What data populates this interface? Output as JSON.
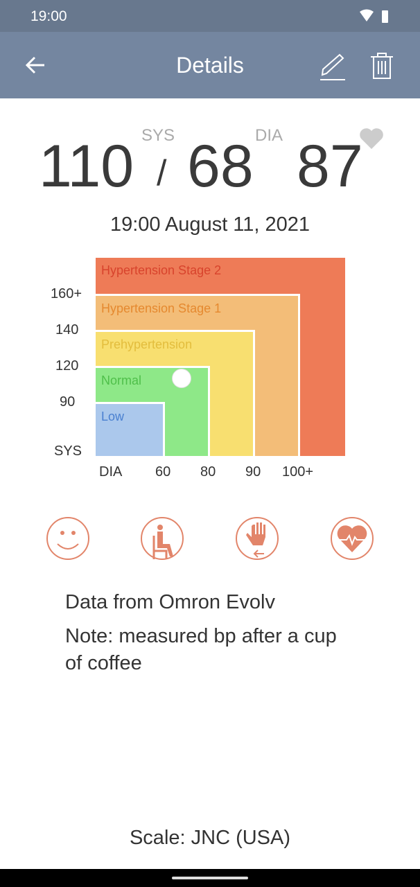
{
  "status_bar": {
    "time": "19:00",
    "icons": [
      "wifi-icon",
      "battery-icon"
    ]
  },
  "app_bar": {
    "title": "Details",
    "icons": [
      "back-arrow-icon",
      "edit-pencil-icon",
      "trash-icon"
    ]
  },
  "reading": {
    "sys": "110",
    "separator": "/",
    "dia": "68",
    "pulse": "87",
    "sys_label": "SYS",
    "dia_label": "DIA",
    "favorite_icon": "heart-icon",
    "datetime": "19:00 August 11, 2021"
  },
  "chart": {
    "zones": [
      {
        "label": "Hypertension Stage 2",
        "color": "#ee7b57",
        "text_color": "#d8432c"
      },
      {
        "label": "Hypertension Stage 1",
        "color": "#f3bd78",
        "text_color": "#e5892f"
      },
      {
        "label": "Prehypertension",
        "color": "#f8df70",
        "text_color": "#e3bd3d"
      },
      {
        "label": "Normal",
        "color": "#8ee888",
        "text_color": "#4fbf4a"
      },
      {
        "label": "Low",
        "color": "#abc8ec",
        "text_color": "#4a80d0"
      }
    ],
    "y_ticks": [
      "160+",
      "140",
      "120",
      "90"
    ],
    "y_label": "SYS",
    "x_label": "DIA",
    "x_ticks": [
      "60",
      "80",
      "90",
      "100+"
    ],
    "marker": {
      "sys": 110,
      "dia": 68
    }
  },
  "tags": [
    "smiley-icon",
    "seated-icon",
    "hand-arm-icon",
    "heart-rate-icon"
  ],
  "tag_color": "#e2856a",
  "source": "Data from Omron Evolv",
  "note": "Note: measured bp after a cup of coffee",
  "scale": "Scale: JNC (USA)"
}
